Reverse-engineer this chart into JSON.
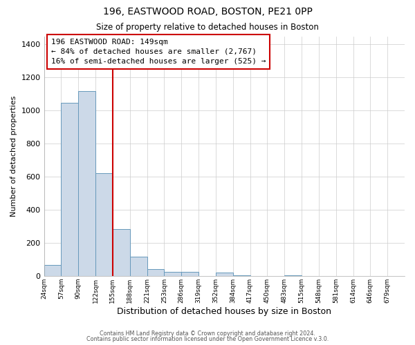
{
  "title_line1": "196, EASTWOOD ROAD, BOSTON, PE21 0PP",
  "title_line2": "Size of property relative to detached houses in Boston",
  "xlabel": "Distribution of detached houses by size in Boston",
  "ylabel": "Number of detached properties",
  "bar_color": "#ccd9e8",
  "bar_edge_color": "#6699bb",
  "bin_labels": [
    "24sqm",
    "57sqm",
    "90sqm",
    "122sqm",
    "155sqm",
    "188sqm",
    "221sqm",
    "253sqm",
    "286sqm",
    "319sqm",
    "352sqm",
    "384sqm",
    "417sqm",
    "450sqm",
    "483sqm",
    "515sqm",
    "548sqm",
    "581sqm",
    "614sqm",
    "646sqm",
    "679sqm"
  ],
  "bar_values": [
    65,
    1048,
    1120,
    620,
    285,
    118,
    42,
    25,
    25,
    0,
    20,
    5,
    0,
    0,
    5,
    0,
    0,
    0,
    0,
    0,
    0
  ],
  "ylim": [
    0,
    1450
  ],
  "yticks": [
    0,
    200,
    400,
    600,
    800,
    1000,
    1200,
    1400
  ],
  "vline_x": 4,
  "vline_color": "#cc0000",
  "annotation_title": "196 EASTWOOD ROAD: 149sqm",
  "annotation_line1": "← 84% of detached houses are smaller (2,767)",
  "annotation_line2": "16% of semi-detached houses are larger (525) →",
  "annotation_box_color": "#ffffff",
  "annotation_box_edge": "#cc0000",
  "footer_line1": "Contains HM Land Registry data © Crown copyright and database right 2024.",
  "footer_line2": "Contains public sector information licensed under the Open Government Licence v.3.0.",
  "bg_color": "#ffffff",
  "plot_bg_color": "#ffffff",
  "grid_color": "#cccccc"
}
